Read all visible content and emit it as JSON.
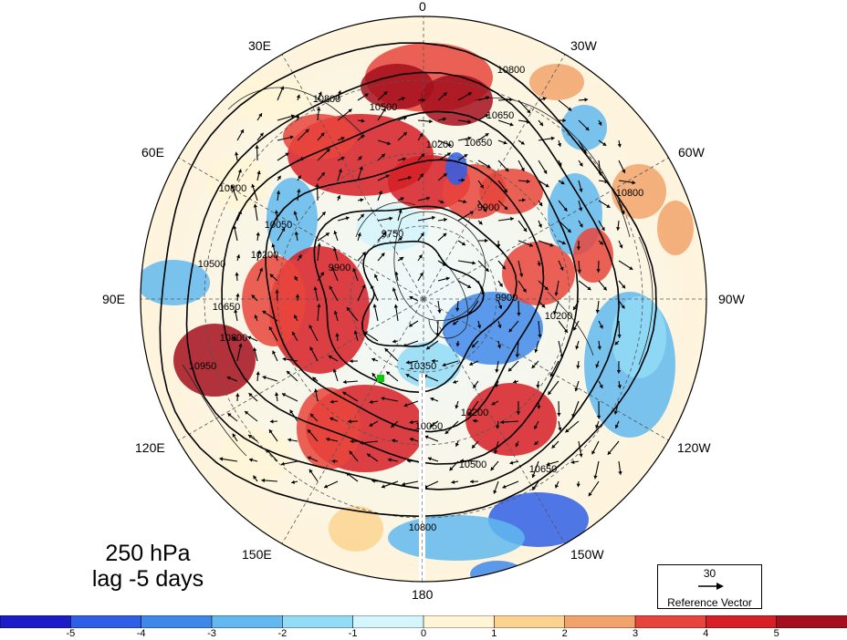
{
  "map": {
    "projection": "north-polar-stereographic",
    "center_marker_color": "#00d000",
    "contour_color": "#000000",
    "gap_line_color": "#ffffff"
  },
  "longitude_labels": {
    "deg0": "0",
    "deg30w": "30W",
    "deg60w": "60W",
    "deg90w": "90W",
    "deg120w": "120W",
    "deg150w": "150W",
    "deg180": "180",
    "deg150e": "150E",
    "deg120e": "120E",
    "deg90e": "90E",
    "deg60e": "60E",
    "deg30e": "30E"
  },
  "contour_labels": [
    "10800",
    "10650",
    "10500",
    "10800",
    "10650",
    "10200",
    "9900",
    "9750",
    "9900",
    "10050",
    "10200",
    "10500",
    "10650",
    "10800",
    "10950",
    "10800",
    "10800",
    "10500",
    "10650",
    "10050",
    "10200",
    "10350",
    "9900",
    "10200",
    "10800"
  ],
  "title": {
    "line1": "250 hPa",
    "line2": "lag -5 days"
  },
  "reference_vector": {
    "value": "30",
    "label": "Reference Vector"
  },
  "colorbar": {
    "labels": [
      "-5",
      "-4",
      "-3",
      "-2",
      "-1",
      "0",
      "1",
      "2",
      "3",
      "4",
      "5"
    ],
    "colors": [
      "#1c1cc8",
      "#2f5fe6",
      "#3f88ea",
      "#62b8ef",
      "#92dcf6",
      "#d4f5fb",
      "#fff4d6",
      "#fbd38f",
      "#f2a36b",
      "#e7453b",
      "#d61f26",
      "#a50f1d"
    ]
  }
}
